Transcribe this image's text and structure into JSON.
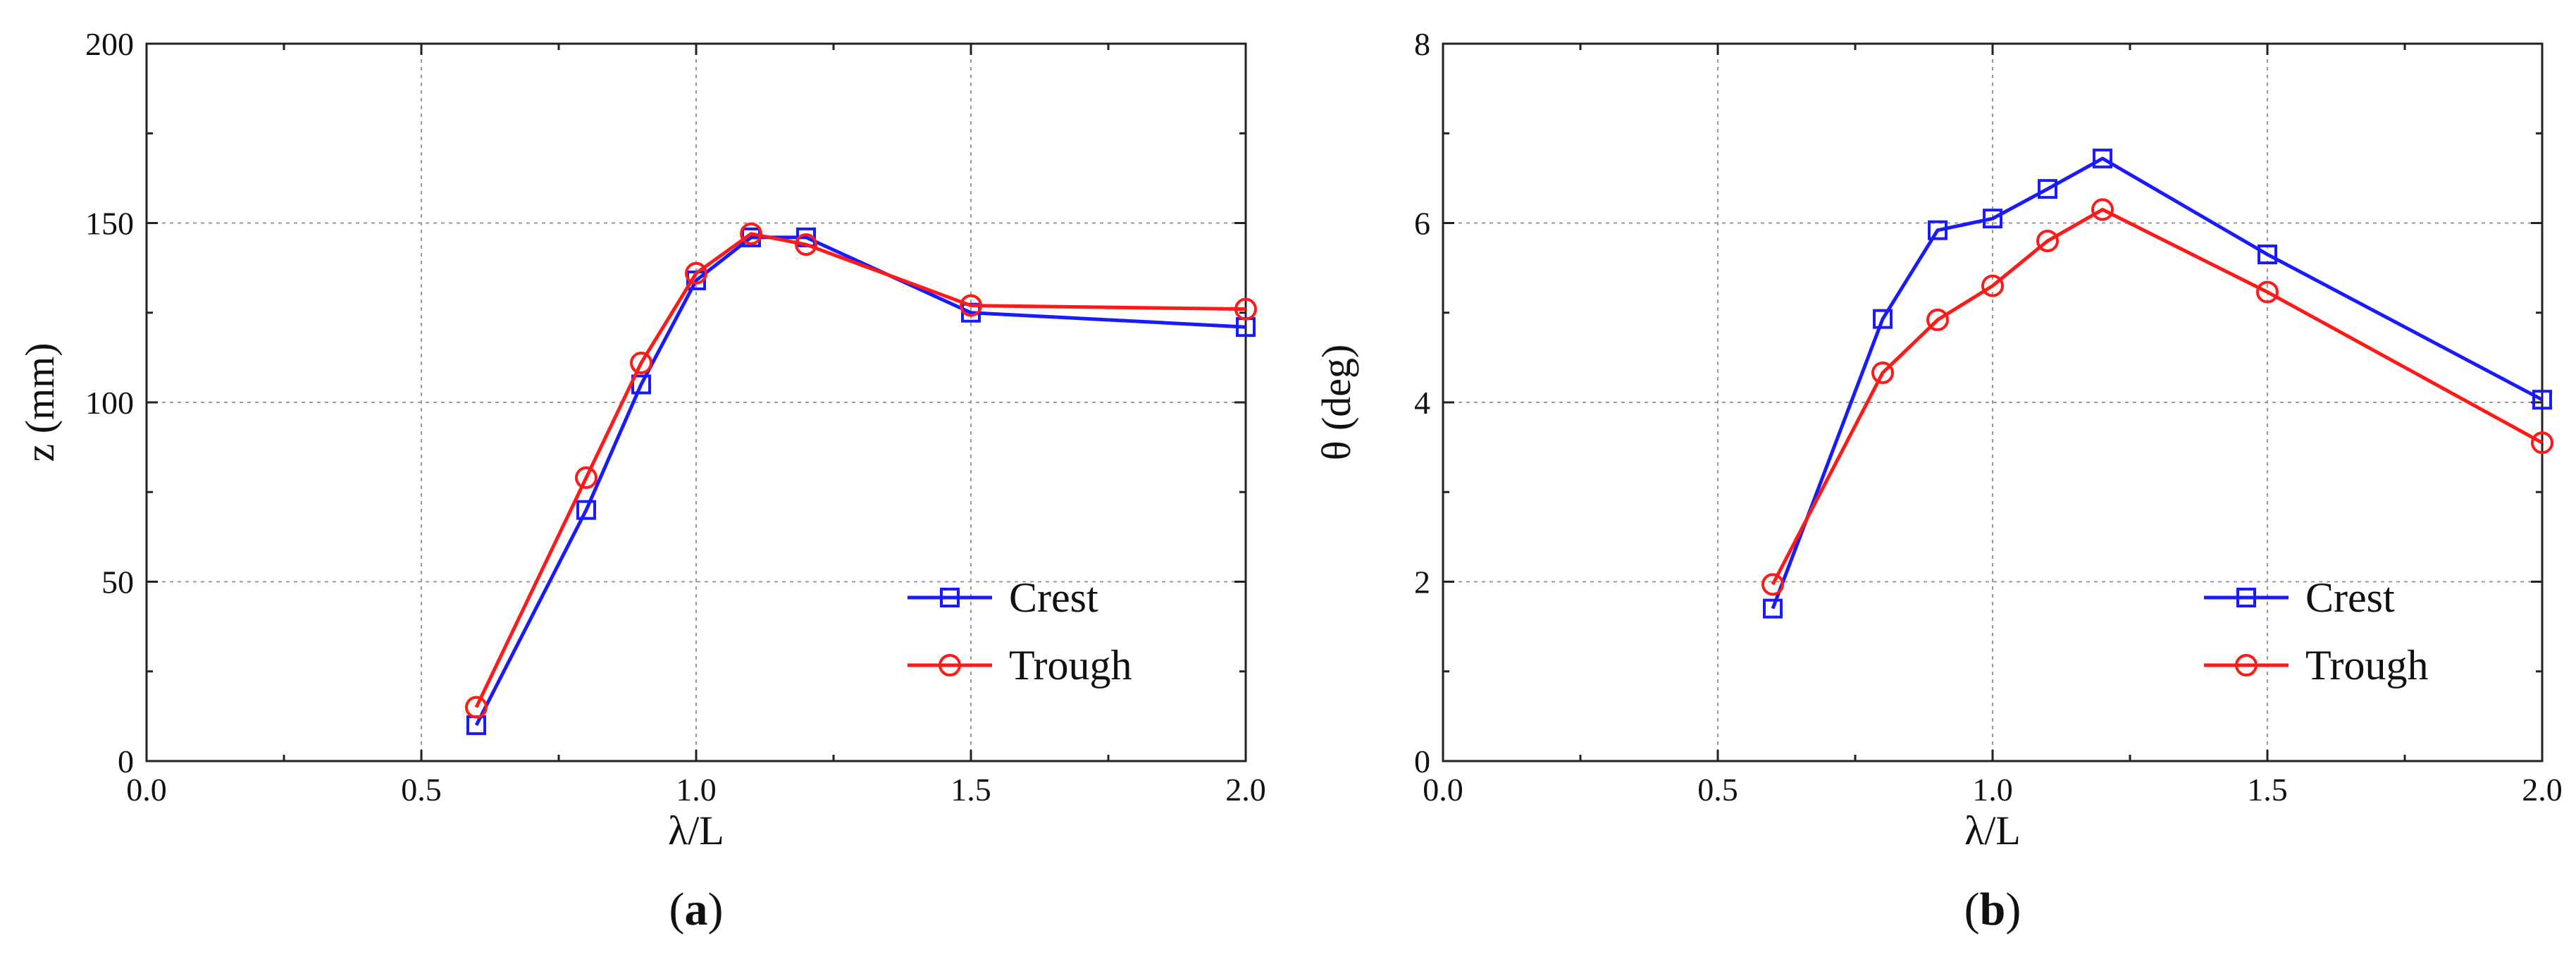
{
  "chart_data": [
    {
      "type": "line",
      "panel_label": "(a)",
      "panel_letter": "a",
      "xlabel": "λ/L",
      "ylabel": "z (mm)",
      "xlim": [
        0.0,
        2.0
      ],
      "ylim": [
        0,
        200
      ],
      "xticks": [
        0.0,
        0.5,
        1.0,
        1.5,
        2.0
      ],
      "xtick_labels": [
        "0.0",
        "0.5",
        "1.0",
        "1.5",
        "2.0"
      ],
      "yticks": [
        0,
        50,
        100,
        150,
        200
      ],
      "ytick_labels": [
        "0",
        "50",
        "100",
        "150",
        "200"
      ],
      "grid": true,
      "legend_position": "bottom-right",
      "series": [
        {
          "name": "Crest",
          "color": "#1a1aff",
          "marker": "square",
          "x": [
            0.6,
            0.8,
            0.9,
            1.0,
            1.1,
            1.2,
            1.5,
            2.0
          ],
          "y": [
            10,
            70,
            105,
            134,
            146,
            146,
            125,
            121
          ]
        },
        {
          "name": "Trough",
          "color": "#ff1a1a",
          "marker": "circle",
          "x": [
            0.6,
            0.8,
            0.9,
            1.0,
            1.1,
            1.2,
            1.5,
            2.0
          ],
          "y": [
            15,
            79,
            111,
            136,
            147,
            144,
            127,
            126
          ]
        }
      ]
    },
    {
      "type": "line",
      "panel_label": "(b)",
      "panel_letter": "b",
      "xlabel": "λ/L",
      "ylabel": "θ (deg)",
      "xlim": [
        0.0,
        2.0
      ],
      "ylim": [
        0,
        8
      ],
      "xticks": [
        0.0,
        0.5,
        1.0,
        1.5,
        2.0
      ],
      "xtick_labels": [
        "0.0",
        "0.5",
        "1.0",
        "1.5",
        "2.0"
      ],
      "yticks": [
        0,
        2,
        4,
        6,
        8
      ],
      "ytick_labels": [
        "0",
        "2",
        "4",
        "6",
        "8"
      ],
      "grid": true,
      "legend_position": "bottom-right",
      "series": [
        {
          "name": "Crest",
          "color": "#1a1aff",
          "marker": "square",
          "x": [
            0.6,
            0.8,
            0.9,
            1.0,
            1.1,
            1.2,
            1.5,
            2.0
          ],
          "y": [
            1.7,
            4.93,
            5.92,
            6.05,
            6.38,
            6.72,
            5.65,
            4.03
          ]
        },
        {
          "name": "Trough",
          "color": "#ff1a1a",
          "marker": "circle",
          "x": [
            0.6,
            0.8,
            0.9,
            1.0,
            1.1,
            1.2,
            1.5,
            2.0
          ],
          "y": [
            1.97,
            4.33,
            4.92,
            5.3,
            5.8,
            6.15,
            5.23,
            3.55
          ]
        }
      ]
    }
  ]
}
